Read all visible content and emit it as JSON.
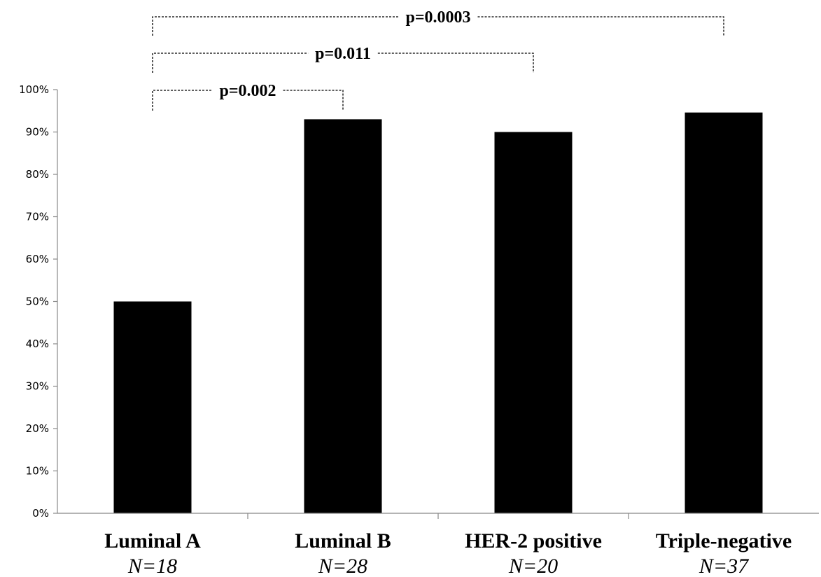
{
  "chart_data": {
    "type": "bar",
    "title": "",
    "xlabel": "",
    "ylabel": "",
    "ylim": [
      0,
      100
    ],
    "y_ticks": [
      "0%",
      "10%",
      "20%",
      "30%",
      "40%",
      "50%",
      "60%",
      "70%",
      "80%",
      "90%",
      "100%"
    ],
    "categories": [
      "Luminal A",
      "Luminal B",
      "HER-2 positive",
      "Triple-negative"
    ],
    "sample_sizes": [
      "N=18",
      "N=28",
      "N=20",
      "N=37"
    ],
    "values": [
      50,
      93,
      90,
      94.6
    ],
    "bar_color": "#000000",
    "grid": false,
    "legend": "none",
    "comparisons": [
      {
        "from": "Luminal A",
        "to": "Luminal B",
        "label": "p=0.002"
      },
      {
        "from": "Luminal A",
        "to": "HER-2 positive",
        "label": "p=0.011"
      },
      {
        "from": "Luminal A",
        "to": "Triple-negative",
        "label": "p=0.0003"
      }
    ]
  }
}
